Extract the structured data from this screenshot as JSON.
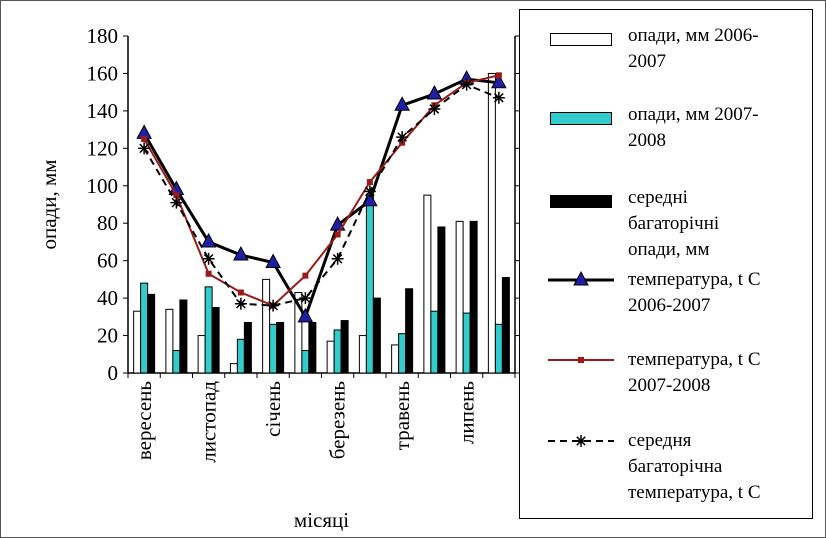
{
  "chart_data": {
    "type": "bar",
    "categories": [
      "вересень",
      "",
      "листопад",
      "",
      "січень",
      "",
      "березень",
      "",
      "травень",
      "",
      "липень",
      ""
    ],
    "xlabel": "місяці",
    "ylabel": "опади, мм",
    "ylim": [
      0,
      180
    ],
    "yticks": [
      0,
      20,
      40,
      60,
      80,
      100,
      120,
      140,
      160,
      180
    ],
    "grid": false,
    "legend_position": "right",
    "bar_series": [
      {
        "name": "опади, мм 2006-2007",
        "color": "#ffffff",
        "values": [
          33,
          34,
          20,
          5,
          50,
          43,
          17,
          20,
          15,
          95,
          81,
          160
        ]
      },
      {
        "name": "опади, мм 2007-2008",
        "color": "#33cccc",
        "values": [
          48,
          12,
          46,
          18,
          26,
          12,
          23,
          95,
          21,
          33,
          32,
          26
        ]
      },
      {
        "name": "середні багаторічні опади, мм",
        "color": "#000000",
        "values": [
          42,
          39,
          35,
          27,
          27,
          27,
          28,
          40,
          45,
          78,
          81,
          51
        ]
      }
    ],
    "line_series": [
      {
        "name": "температура, t С 2006-2007",
        "color": "#000000",
        "marker": "triangle",
        "values": [
          128,
          98,
          70,
          63,
          59,
          30,
          79,
          92,
          143,
          149,
          157,
          155
        ]
      },
      {
        "name": "температура, t С 2007-2008",
        "color": "#9b1b1b",
        "marker": "square",
        "values": [
          125,
          95,
          53,
          43,
          36,
          52,
          74,
          102,
          123,
          143,
          155,
          159
        ]
      },
      {
        "name": "середня багаторічна температура, t С",
        "color": "#000000",
        "marker": "star",
        "dashed": true,
        "values": [
          120,
          91,
          61,
          37,
          36,
          40,
          61,
          97,
          126,
          141,
          154,
          147
        ]
      }
    ]
  },
  "legend": {
    "items": [
      "опади, мм 2006-\n2007",
      "опади, мм 2007-\n2008",
      "середні\nбагаторічні\nопади, мм",
      "температура, t С\n2006-2007",
      "температура, t С\n2007-2008",
      "середня\nбагаторічна\nтемпература, t С"
    ]
  }
}
